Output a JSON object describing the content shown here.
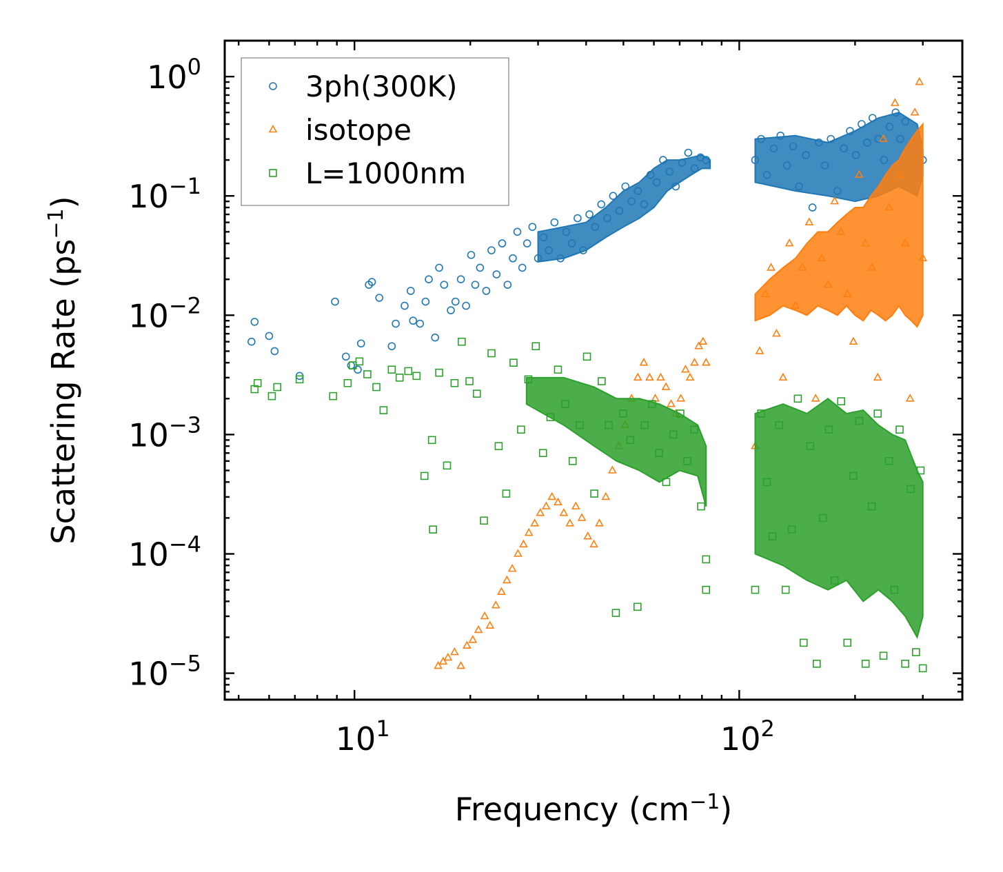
{
  "chart_data": {
    "type": "scatter",
    "title": "",
    "xlabel": {
      "main": "Frequency (cm",
      "sup": "−1",
      "close": ")"
    },
    "ylabel": {
      "main": "Scattering Rate (ps",
      "sup": "−1",
      "close": ")"
    },
    "xscale": "log",
    "yscale": "log",
    "xlim": [
      4.6,
      380
    ],
    "ylim": [
      6e-06,
      2.0
    ],
    "xticks": [
      {
        "value": 10,
        "base": "10",
        "exp": "1"
      },
      {
        "value": 100,
        "base": "10",
        "exp": "2"
      }
    ],
    "yticks": [
      {
        "value": 1,
        "base": "10",
        "exp": "0"
      },
      {
        "value": 0.1,
        "base": "10",
        "exp": "−1"
      },
      {
        "value": 0.01,
        "base": "10",
        "exp": "−2"
      },
      {
        "value": 0.001,
        "base": "10",
        "exp": "−3"
      },
      {
        "value": 0.0001,
        "base": "10",
        "exp": "−4"
      },
      {
        "value": 1e-05,
        "base": "10",
        "exp": "−5"
      }
    ],
    "grid": false,
    "legend_position": "top-left",
    "series": [
      {
        "name": "3ph(300K)",
        "marker": "circle",
        "color": "#1f77b4",
        "x": [
          5.4,
          5.5,
          6.0,
          6.2,
          7.2,
          8.9,
          9.5,
          9.8,
          10.2,
          10.4,
          10.9,
          11.1,
          11.6,
          12.5,
          12.8,
          13.5,
          14.0,
          14.2,
          14.8,
          15.3,
          15.6,
          16.2,
          16.6,
          17.1,
          17.8,
          18.3,
          18.9,
          19.5,
          20.1,
          20.6,
          21.2,
          22.0,
          22.7,
          23.4,
          24.2,
          25.0,
          25.8,
          26.5,
          27.3,
          28.1,
          29.0,
          30.0,
          31.0,
          32.0,
          33.1,
          34.3,
          35.5,
          36.7,
          38.0,
          39.3,
          40.8,
          42.2,
          43.8,
          45.4,
          47.0,
          48.8,
          50.6,
          52.5,
          54.5,
          56.6,
          58.8,
          61.0,
          63.4,
          65.9,
          68.4,
          71.0,
          73.7,
          76.5,
          79.3,
          82.0,
          110,
          114,
          118,
          123,
          128,
          133,
          138,
          143,
          149,
          155,
          161,
          167,
          173,
          180,
          187,
          194,
          201,
          208,
          215,
          222,
          230,
          238,
          246,
          255,
          262,
          270,
          280,
          290,
          300
        ],
        "y": [
          0.006,
          0.0088,
          0.0067,
          0.005,
          0.0031,
          0.013,
          0.0045,
          0.0038,
          0.0035,
          0.0058,
          0.018,
          0.019,
          0.014,
          0.0055,
          0.0085,
          0.012,
          0.016,
          0.009,
          0.0085,
          0.013,
          0.02,
          0.0065,
          0.025,
          0.018,
          0.011,
          0.013,
          0.02,
          0.012,
          0.032,
          0.018,
          0.025,
          0.016,
          0.035,
          0.022,
          0.04,
          0.018,
          0.03,
          0.05,
          0.025,
          0.04,
          0.055,
          0.03,
          0.045,
          0.035,
          0.06,
          0.03,
          0.05,
          0.04,
          0.065,
          0.035,
          0.07,
          0.055,
          0.085,
          0.065,
          0.1,
          0.075,
          0.12,
          0.09,
          0.11,
          0.085,
          0.15,
          0.13,
          0.2,
          0.16,
          0.12,
          0.19,
          0.23,
          0.17,
          0.21,
          0.2,
          0.2,
          0.3,
          0.15,
          0.25,
          0.32,
          0.18,
          0.26,
          0.12,
          0.22,
          0.08,
          0.28,
          0.18,
          0.3,
          0.11,
          0.25,
          0.35,
          0.22,
          0.4,
          0.28,
          0.45,
          0.3,
          0.2,
          0.38,
          0.5,
          0.3,
          0.42,
          0.25,
          0.3,
          0.2
        ],
        "band": {
          "x": [
            30,
            35,
            40,
            45,
            50,
            55,
            60,
            65,
            70,
            75,
            80,
            84,
            84,
            80,
            75,
            70,
            65,
            60,
            55,
            50,
            45,
            40,
            35,
            30
          ],
          "y": [
            0.05,
            0.055,
            0.06,
            0.08,
            0.11,
            0.13,
            0.17,
            0.2,
            0.2,
            0.21,
            0.22,
            0.2,
            0.17,
            0.17,
            0.15,
            0.13,
            0.11,
            0.08,
            0.065,
            0.055,
            0.045,
            0.035,
            0.03,
            0.028
          ]
        },
        "band2": {
          "x": [
            110,
            140,
            170,
            200,
            230,
            260,
            290,
            300,
            300,
            290,
            260,
            230,
            200,
            170,
            140,
            110
          ],
          "y": [
            0.3,
            0.32,
            0.28,
            0.35,
            0.45,
            0.5,
            0.4,
            0.25,
            0.15,
            0.1,
            0.12,
            0.1,
            0.09,
            0.1,
            0.11,
            0.13
          ]
        }
      },
      {
        "name": "isotope",
        "marker": "triangle",
        "color": "#ff7f0e",
        "x": [
          16.5,
          17.0,
          17.5,
          18.2,
          18.9,
          19.6,
          20.3,
          21.0,
          21.8,
          22.5,
          23.3,
          24.1,
          24.9,
          25.7,
          26.6,
          27.5,
          28.4,
          29.4,
          30.4,
          31.5,
          32.6,
          33.8,
          35.0,
          36.3,
          37.6,
          39.0,
          40.4,
          41.9,
          43.3,
          45.0,
          46.8,
          48.6,
          50.5,
          52.5,
          54.5,
          56.5,
          58.5,
          60.5,
          62.5,
          64.5,
          66.5,
          68.5,
          70.5,
          72.5,
          74.5,
          76.5,
          78.5,
          80.5,
          82.0,
          110,
          113,
          117,
          121,
          125,
          130,
          135,
          140,
          146,
          152,
          158,
          164,
          170,
          177,
          184,
          191,
          198,
          205,
          213,
          221,
          229,
          237,
          245,
          254,
          262,
          270,
          278,
          286,
          294,
          300
        ],
        "y": [
          1.15e-05,
          1.25e-05,
          1.35e-05,
          1.5e-05,
          1.15e-05,
          1.7e-05,
          1.9e-05,
          2.3e-05,
          3e-05,
          2.5e-05,
          3.7e-05,
          4.8e-05,
          6e-05,
          7.5e-05,
          0.0001,
          0.00012,
          0.00015,
          0.00018,
          0.00022,
          0.00025,
          0.0003,
          0.00027,
          0.00022,
          0.00018,
          0.00025,
          0.0002,
          0.00014,
          0.00012,
          0.00018,
          0.0003,
          0.0005,
          0.0008,
          0.0012,
          0.002,
          0.003,
          0.004,
          0.003,
          0.002,
          0.003,
          0.0025,
          0.0018,
          0.0015,
          0.002,
          0.0035,
          0.003,
          0.004,
          0.0055,
          0.006,
          0.004,
          0.0008,
          0.005,
          0.015,
          0.025,
          0.007,
          0.003,
          0.04,
          0.012,
          0.025,
          0.06,
          0.002,
          0.03,
          0.018,
          0.09,
          0.05,
          0.015,
          0.006,
          0.15,
          0.04,
          0.025,
          0.003,
          0.3,
          0.08,
          0.6,
          0.15,
          0.04,
          0.002,
          0.5,
          0.9,
          0.03
        ],
        "band": {
          "x": [
            110,
            120,
            130,
            140,
            150,
            160,
            170,
            180,
            190,
            200,
            210,
            220,
            230,
            240,
            250,
            260,
            270,
            280,
            290,
            300,
            300,
            290,
            280,
            270,
            260,
            250,
            240,
            230,
            220,
            210,
            200,
            190,
            180,
            170,
            160,
            150,
            140,
            130,
            120,
            110
          ],
          "y": [
            0.015,
            0.02,
            0.025,
            0.03,
            0.04,
            0.05,
            0.05,
            0.06,
            0.07,
            0.08,
            0.08,
            0.1,
            0.12,
            0.15,
            0.18,
            0.2,
            0.25,
            0.3,
            0.35,
            0.4,
            0.01,
            0.008,
            0.009,
            0.01,
            0.012,
            0.01,
            0.009,
            0.01,
            0.011,
            0.009,
            0.01,
            0.012,
            0.01,
            0.011,
            0.012,
            0.01,
            0.011,
            0.012,
            0.01,
            0.009
          ]
        }
      },
      {
        "name": "L=1000nm",
        "marker": "square",
        "color": "#2ca02c",
        "x": [
          5.5,
          5.6,
          6.1,
          6.3,
          7.2,
          8.8,
          9.6,
          9.9,
          10.3,
          10.8,
          11.4,
          11.9,
          12.5,
          13.1,
          13.8,
          14.5,
          15.2,
          15.9,
          16.0,
          16.6,
          17.4,
          18.2,
          19.0,
          19.9,
          20.8,
          21.7,
          22.7,
          23.7,
          24.8,
          25.9,
          27.1,
          28.3,
          29.6,
          30.9,
          32.3,
          33.8,
          35.3,
          36.9,
          38.5,
          40.2,
          42.0,
          43.9,
          45.8,
          47.8,
          49.9,
          52.1,
          54.4,
          56.8,
          59.3,
          61.9,
          64.6,
          67.4,
          70.3,
          73.3,
          76.4,
          79.6,
          82.0,
          82.0,
          110,
          114,
          118,
          122,
          127,
          132,
          137,
          142,
          147,
          153,
          159,
          165,
          171,
          177,
          184,
          191,
          198,
          205,
          213,
          221,
          229,
          237,
          245,
          253,
          261,
          270,
          279,
          288,
          296,
          300
        ],
        "y": [
          0.0024,
          0.0027,
          0.0021,
          0.0025,
          0.0029,
          0.0021,
          0.0027,
          0.0038,
          0.0041,
          0.0032,
          0.0025,
          0.0016,
          0.0035,
          0.003,
          0.0034,
          0.0031,
          0.00045,
          0.0009,
          0.00016,
          0.0033,
          0.00055,
          0.0027,
          0.006,
          0.0028,
          0.0022,
          0.00019,
          0.0048,
          0.0008,
          0.00032,
          0.004,
          0.0011,
          0.0029,
          0.0055,
          0.0007,
          0.0014,
          0.0035,
          0.0018,
          0.0006,
          0.0012,
          0.0045,
          0.00032,
          0.0028,
          0.0012,
          3.2e-05,
          0.0015,
          0.0009,
          3.6e-05,
          0.0012,
          0.0018,
          0.0007,
          0.0004,
          0.001,
          0.0015,
          0.0006,
          0.0011,
          0.00025,
          9e-05,
          5e-05,
          5e-05,
          0.0015,
          0.0004,
          0.00014,
          0.0012,
          5e-05,
          0.00016,
          0.002,
          1.8e-05,
          0.0008,
          1.2e-05,
          0.0002,
          0.0011,
          6e-05,
          0.0019,
          1.8e-05,
          0.00045,
          0.0013,
          1.2e-05,
          0.00025,
          0.0015,
          1.4e-05,
          0.0006,
          5e-05,
          0.0011,
          1.2e-05,
          0.00035,
          1.5e-05,
          0.0005,
          1.1e-05
        ],
        "band": {
          "x": [
            28,
            35,
            42,
            48,
            55,
            62,
            70,
            78,
            82,
            82,
            78,
            70,
            62,
            55,
            48,
            42,
            35,
            28
          ],
          "y": [
            0.003,
            0.003,
            0.0025,
            0.002,
            0.002,
            0.0018,
            0.0015,
            0.0012,
            0.0008,
            0.00025,
            0.00045,
            0.0005,
            0.0004,
            0.0005,
            0.0006,
            0.0008,
            0.0012,
            0.0018
          ]
        },
        "band2": {
          "x": [
            110,
            130,
            150,
            170,
            190,
            210,
            230,
            250,
            270,
            290,
            300,
            300,
            290,
            270,
            250,
            230,
            210,
            190,
            170,
            150,
            130,
            110
          ],
          "y": [
            0.0015,
            0.0018,
            0.0015,
            0.002,
            0.0015,
            0.0016,
            0.0012,
            0.001,
            0.0009,
            0.0005,
            0.0004,
            3e-05,
            2e-05,
            3e-05,
            4e-05,
            5e-05,
            4e-05,
            6e-05,
            5e-05,
            6e-05,
            8e-05,
            0.0001
          ]
        }
      }
    ]
  }
}
